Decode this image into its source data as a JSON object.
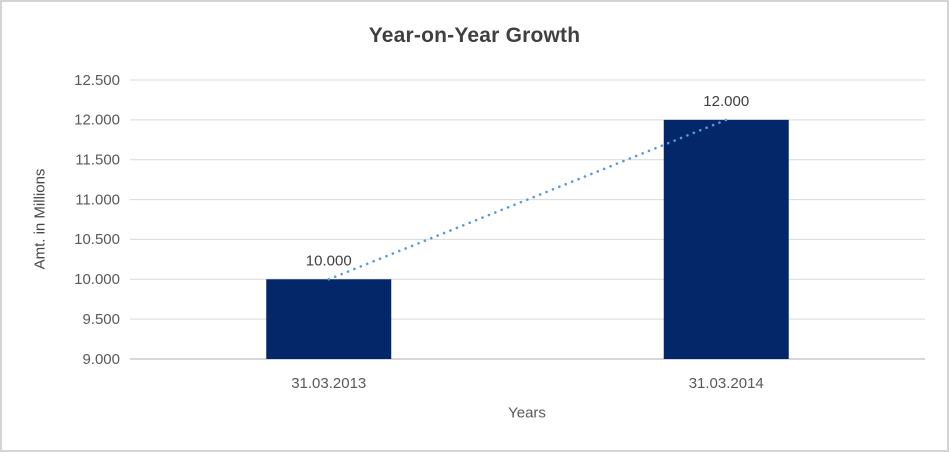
{
  "window": {
    "background": "#ffffff",
    "frame_border_color": "#d4d4d4"
  },
  "chart_data": {
    "type": "bar",
    "title": "Year-on-Year Growth",
    "xlabel": "Years",
    "ylabel": "Amt. in Millions",
    "categories": [
      "31.03.2013",
      "31.03.2014"
    ],
    "values": [
      10000,
      12000
    ],
    "data_labels": [
      "10.000",
      "12.000"
    ],
    "y_axis": {
      "min": 9000,
      "max": 12500,
      "tick_step": 500,
      "ticks": [
        {
          "value": 9000,
          "label": "9.000"
        },
        {
          "value": 9500,
          "label": "9.500"
        },
        {
          "value": 10000,
          "label": "10.000"
        },
        {
          "value": 10500,
          "label": "10.500"
        },
        {
          "value": 11000,
          "label": "11.000"
        },
        {
          "value": 11500,
          "label": "11.500"
        },
        {
          "value": 12000,
          "label": "12.000"
        },
        {
          "value": 12500,
          "label": "12.500"
        }
      ]
    },
    "grid": true,
    "legend": false,
    "trendline": {
      "style": "dotted",
      "from_value": 10000,
      "to_value": 12000
    },
    "colors": {
      "bar": "#032768",
      "trendline": "#5b9bd5",
      "gridline": "#d9d9d9",
      "axis_line": "#bfbfbf",
      "title_text": "#404040",
      "tick_text": "#595959",
      "data_label_text": "#404040"
    }
  }
}
